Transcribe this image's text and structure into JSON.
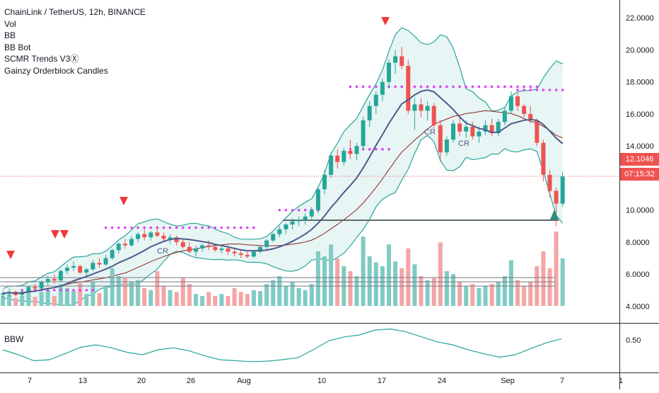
{
  "legend": {
    "symbol": "ChainLink / TetherUS, 12h, BINANCE",
    "indicators": [
      "Vol",
      "BB",
      "BB Bot",
      "SCMR Trends V3Ⓧ",
      "Gainzy Orderblock Candles"
    ]
  },
  "price_scale": {
    "labels": [
      "22.0000",
      "20.0000",
      "18.0000",
      "16.0000",
      "14.0000",
      "12.1046",
      "10.0000",
      "8.0000",
      "6.0000",
      "4.0000"
    ],
    "last_price": "12.1046",
    "countdown": "07:15:32"
  },
  "time_axis": {
    "labels": [
      "7",
      "13",
      "20",
      "26",
      "Aug",
      "10",
      "17",
      "24",
      "Sep",
      "7",
      "1"
    ]
  },
  "bbw_pane": {
    "title": "BBW",
    "level_label": "0.50"
  },
  "chart_labels": [
    "CR",
    "CR",
    "CR"
  ],
  "colors": {
    "up": "#26a69a",
    "down": "#ef5350",
    "basis": "#4e5b8a",
    "bb_line": "#26a69a",
    "bb_fill": "#e7f5f4",
    "ma": "#8b2323",
    "dots": "#e040fb",
    "vol_up": "#80cbc4",
    "vol_down": "#f4a5a5",
    "signal_down": "#ef3b3b",
    "signal_up": "#2e8b7a"
  },
  "chart_data": {
    "type": "candlestick",
    "timeframe": "12h",
    "exchange": "BINANCE",
    "price_range": [
      3,
      22
    ],
    "last_price": 12.1046,
    "candles": [
      [
        4.7,
        5.0,
        4.5,
        4.8
      ],
      [
        4.8,
        5.1,
        4.6,
        4.9
      ],
      [
        4.9,
        5.0,
        4.6,
        4.7
      ],
      [
        4.7,
        5.0,
        4.6,
        4.9
      ],
      [
        4.9,
        5.3,
        4.8,
        5.2
      ],
      [
        5.2,
        5.4,
        5.0,
        5.1
      ],
      [
        5.1,
        5.6,
        5.0,
        5.5
      ],
      [
        5.5,
        5.9,
        5.3,
        5.7
      ],
      [
        5.7,
        6.0,
        5.4,
        5.6
      ],
      [
        5.6,
        6.3,
        5.5,
        6.2
      ],
      [
        6.2,
        6.6,
        6.0,
        6.4
      ],
      [
        6.4,
        6.8,
        6.2,
        6.5
      ],
      [
        6.5,
        6.6,
        6.0,
        6.1
      ],
      [
        6.1,
        6.4,
        5.9,
        6.3
      ],
      [
        6.3,
        6.9,
        6.2,
        6.7
      ],
      [
        6.7,
        7.0,
        6.4,
        6.6
      ],
      [
        6.6,
        7.2,
        6.5,
        7.0
      ],
      [
        7.0,
        7.6,
        6.9,
        7.5
      ],
      [
        7.5,
        8.0,
        7.3,
        7.9
      ],
      [
        7.9,
        8.2,
        7.6,
        7.8
      ],
      [
        7.8,
        8.4,
        7.7,
        8.2
      ],
      [
        8.2,
        8.6,
        8.0,
        8.5
      ],
      [
        8.5,
        8.8,
        8.1,
        8.3
      ],
      [
        8.3,
        8.7,
        8.1,
        8.6
      ],
      [
        8.6,
        9.0,
        8.3,
        8.4
      ],
      [
        8.4,
        8.6,
        8.0,
        8.2
      ],
      [
        8.2,
        8.5,
        7.9,
        8.3
      ],
      [
        8.3,
        8.4,
        7.8,
        8.0
      ],
      [
        8.0,
        8.2,
        7.6,
        7.7
      ],
      [
        7.7,
        8.0,
        7.3,
        7.4
      ],
      [
        7.4,
        7.8,
        7.1,
        7.6
      ],
      [
        7.6,
        7.9,
        7.4,
        7.8
      ],
      [
        7.8,
        8.1,
        7.5,
        7.7
      ],
      [
        7.7,
        7.9,
        7.4,
        7.5
      ],
      [
        7.5,
        7.8,
        7.3,
        7.6
      ],
      [
        7.6,
        7.8,
        7.2,
        7.4
      ],
      [
        7.4,
        7.6,
        7.1,
        7.3
      ],
      [
        7.3,
        7.5,
        7.0,
        7.2
      ],
      [
        7.2,
        7.4,
        7.0,
        7.1
      ],
      [
        7.1,
        7.5,
        7.0,
        7.4
      ],
      [
        7.4,
        7.8,
        7.3,
        7.7
      ],
      [
        7.7,
        8.2,
        7.5,
        8.1
      ],
      [
        8.1,
        8.6,
        8.0,
        8.5
      ],
      [
        8.5,
        9.0,
        8.3,
        8.8
      ],
      [
        8.8,
        9.2,
        8.5,
        9.1
      ],
      [
        9.1,
        9.5,
        8.8,
        9.3
      ],
      [
        9.3,
        9.6,
        9.0,
        9.4
      ],
      [
        9.4,
        9.8,
        9.1,
        9.6
      ],
      [
        9.6,
        10.2,
        9.4,
        10.0
      ],
      [
        10.0,
        11.5,
        9.8,
        11.3
      ],
      [
        11.3,
        12.5,
        11.0,
        12.2
      ],
      [
        12.2,
        13.6,
        12.0,
        13.4
      ],
      [
        13.4,
        13.8,
        12.6,
        13.0
      ],
      [
        13.0,
        13.9,
        12.8,
        13.7
      ],
      [
        13.7,
        14.4,
        13.2,
        13.5
      ],
      [
        13.5,
        14.2,
        13.1,
        14.0
      ],
      [
        14.0,
        15.8,
        13.8,
        15.6
      ],
      [
        15.6,
        16.8,
        15.2,
        16.5
      ],
      [
        16.5,
        17.4,
        16.0,
        17.2
      ],
      [
        17.2,
        18.2,
        16.8,
        18.0
      ],
      [
        18.0,
        19.4,
        17.6,
        19.2
      ],
      [
        19.2,
        20.0,
        18.5,
        19.6
      ],
      [
        19.6,
        20.2,
        18.8,
        19.0
      ],
      [
        19.0,
        19.4,
        16.0,
        16.2
      ],
      [
        16.2,
        17.0,
        15.0,
        16.6
      ],
      [
        16.6,
        17.0,
        15.8,
        16.2
      ],
      [
        16.2,
        16.8,
        15.6,
        16.5
      ],
      [
        16.5,
        16.7,
        15.0,
        15.3
      ],
      [
        15.3,
        15.6,
        13.0,
        13.6
      ],
      [
        13.6,
        14.6,
        13.4,
        14.4
      ],
      [
        14.4,
        15.6,
        14.2,
        15.4
      ],
      [
        15.4,
        15.8,
        14.6,
        14.9
      ],
      [
        14.9,
        15.6,
        14.5,
        15.2
      ],
      [
        15.2,
        15.5,
        14.4,
        14.6
      ],
      [
        14.6,
        15.2,
        14.2,
        14.9
      ],
      [
        14.9,
        15.6,
        14.7,
        15.3
      ],
      [
        15.3,
        15.7,
        14.6,
        14.8
      ],
      [
        14.8,
        15.7,
        14.6,
        15.5
      ],
      [
        15.5,
        16.4,
        15.3,
        16.2
      ],
      [
        16.2,
        17.4,
        16.0,
        17.1
      ],
      [
        17.1,
        17.3,
        16.2,
        16.5
      ],
      [
        16.5,
        16.6,
        15.8,
        16.0
      ],
      [
        16.0,
        16.5,
        15.4,
        15.6
      ],
      [
        15.6,
        15.7,
        14.0,
        14.2
      ],
      [
        14.2,
        14.4,
        11.8,
        12.2
      ],
      [
        12.2,
        12.5,
        10.8,
        11.2
      ],
      [
        11.2,
        11.4,
        9.0,
        10.4
      ],
      [
        10.4,
        12.4,
        10.2,
        12.1
      ]
    ],
    "volume": [
      [
        0.1,
        1
      ],
      [
        0.12,
        1
      ],
      [
        0.08,
        0
      ],
      [
        0.1,
        1
      ],
      [
        0.15,
        1
      ],
      [
        0.09,
        0
      ],
      [
        0.14,
        1
      ],
      [
        0.16,
        1
      ],
      [
        0.1,
        0
      ],
      [
        0.22,
        1
      ],
      [
        0.18,
        1
      ],
      [
        0.15,
        1
      ],
      [
        0.25,
        0
      ],
      [
        0.12,
        1
      ],
      [
        0.24,
        1
      ],
      [
        0.13,
        0
      ],
      [
        0.2,
        1
      ],
      [
        0.38,
        1
      ],
      [
        0.3,
        1
      ],
      [
        0.28,
        0
      ],
      [
        0.24,
        1
      ],
      [
        0.26,
        1
      ],
      [
        0.18,
        0
      ],
      [
        0.16,
        1
      ],
      [
        0.35,
        0
      ],
      [
        0.2,
        0
      ],
      [
        0.16,
        1
      ],
      [
        0.14,
        0
      ],
      [
        0.28,
        0
      ],
      [
        0.22,
        0
      ],
      [
        0.12,
        1
      ],
      [
        0.1,
        1
      ],
      [
        0.14,
        0
      ],
      [
        0.1,
        0
      ],
      [
        0.12,
        1
      ],
      [
        0.1,
        0
      ],
      [
        0.18,
        0
      ],
      [
        0.14,
        0
      ],
      [
        0.12,
        0
      ],
      [
        0.16,
        1
      ],
      [
        0.15,
        1
      ],
      [
        0.22,
        1
      ],
      [
        0.26,
        1
      ],
      [
        0.3,
        1
      ],
      [
        0.2,
        1
      ],
      [
        0.24,
        1
      ],
      [
        0.18,
        1
      ],
      [
        0.16,
        1
      ],
      [
        0.22,
        1
      ],
      [
        0.55,
        1
      ],
      [
        0.5,
        1
      ],
      [
        0.62,
        1
      ],
      [
        0.48,
        0
      ],
      [
        0.4,
        1
      ],
      [
        0.35,
        0
      ],
      [
        0.3,
        1
      ],
      [
        0.7,
        1
      ],
      [
        0.5,
        1
      ],
      [
        0.44,
        1
      ],
      [
        0.4,
        1
      ],
      [
        0.62,
        1
      ],
      [
        0.45,
        1
      ],
      [
        0.38,
        0
      ],
      [
        0.58,
        0
      ],
      [
        0.42,
        1
      ],
      [
        0.3,
        0
      ],
      [
        0.26,
        1
      ],
      [
        0.28,
        0
      ],
      [
        0.64,
        0
      ],
      [
        0.35,
        1
      ],
      [
        0.32,
        1
      ],
      [
        0.24,
        0
      ],
      [
        0.2,
        1
      ],
      [
        0.22,
        0
      ],
      [
        0.18,
        1
      ],
      [
        0.2,
        1
      ],
      [
        0.22,
        0
      ],
      [
        0.24,
        1
      ],
      [
        0.3,
        1
      ],
      [
        0.46,
        1
      ],
      [
        0.26,
        0
      ],
      [
        0.2,
        0
      ],
      [
        0.24,
        0
      ],
      [
        0.4,
        0
      ],
      [
        0.55,
        0
      ],
      [
        0.38,
        0
      ],
      [
        0.75,
        0
      ],
      [
        0.48,
        1
      ]
    ],
    "bbw": [
      0.3,
      0.2,
      0.08,
      0.1,
      0.22,
      0.35,
      0.4,
      0.34,
      0.25,
      0.2,
      0.3,
      0.34,
      0.28,
      0.18,
      0.1,
      0.08,
      0.06,
      0.07,
      0.1,
      0.14,
      0.3,
      0.48,
      0.56,
      0.6,
      0.7,
      0.72,
      0.66,
      0.56,
      0.46,
      0.4,
      0.3,
      0.22,
      0.15,
      0.2,
      0.32,
      0.44,
      0.52
    ]
  }
}
